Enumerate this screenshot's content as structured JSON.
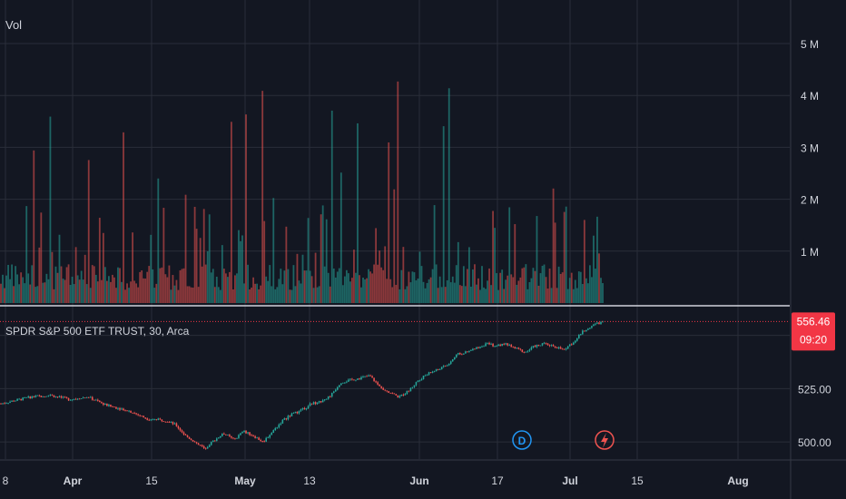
{
  "colors": {
    "background": "#131722",
    "grid": "#2a2e39",
    "up": "#26a69a",
    "down": "#ef5350",
    "text": "#d1d4dc",
    "badge": "#f23645"
  },
  "volume_pane": {
    "label": "Vol"
  },
  "price_pane": {
    "legend": "SPDR S&P 500 ETF TRUST, 30, Arca"
  },
  "price_badge": {
    "price": "556.46",
    "countdown": "09:20"
  },
  "markers": [
    {
      "name": "dividend-marker",
      "letter": "D"
    },
    {
      "name": "earnings-marker",
      "icon": "lightning-icon"
    }
  ],
  "chart_data": [
    {
      "type": "bar",
      "pane": "volume",
      "y_ticks": [
        "5 M",
        "4 M",
        "3 M",
        "2 M",
        "1 M"
      ],
      "y_values": [
        5000000,
        4000000,
        3000000,
        2000000,
        1000000
      ],
      "ylim": [
        0,
        5700000
      ]
    },
    {
      "type": "line",
      "pane": "price",
      "series_style": "candlestick",
      "x_ticks": [
        "8",
        "Apr",
        "15",
        "May",
        "13",
        "Jun",
        "17",
        "Jul",
        "15",
        "Aug"
      ],
      "y_ticks": [
        "525.00",
        "500.00"
      ],
      "y_values": [
        525,
        500
      ],
      "ylim": [
        492,
        563
      ],
      "current_price": 556.46,
      "close_path": [
        [
          0,
          518
        ],
        [
          3,
          521
        ],
        [
          5,
          522
        ],
        [
          7,
          520
        ],
        [
          9,
          521
        ],
        [
          11,
          517
        ],
        [
          13,
          515
        ],
        [
          15,
          511
        ],
        [
          17,
          510
        ],
        [
          18,
          508
        ],
        [
          19,
          503
        ],
        [
          20,
          500
        ],
        [
          21,
          497
        ],
        [
          22,
          501
        ],
        [
          23,
          504
        ],
        [
          24,
          501
        ],
        [
          25,
          505
        ],
        [
          26,
          503
        ],
        [
          27,
          500
        ],
        [
          28,
          505
        ],
        [
          29,
          510
        ],
        [
          30,
          513
        ],
        [
          31,
          515
        ],
        [
          32,
          518
        ],
        [
          33,
          519
        ],
        [
          34,
          522
        ],
        [
          35,
          528
        ],
        [
          37,
          530
        ],
        [
          38,
          531
        ],
        [
          39,
          526
        ],
        [
          41,
          521
        ],
        [
          42,
          524
        ],
        [
          43,
          529
        ],
        [
          44,
          532
        ],
        [
          45,
          534
        ],
        [
          46,
          536
        ],
        [
          47,
          541
        ],
        [
          48,
          542
        ],
        [
          49,
          544
        ],
        [
          50,
          546
        ],
        [
          51,
          545
        ],
        [
          52,
          546
        ],
        [
          53,
          544
        ],
        [
          54,
          542
        ],
        [
          55,
          545
        ],
        [
          56,
          546
        ],
        [
          57,
          545
        ],
        [
          58,
          543
        ],
        [
          59,
          547
        ],
        [
          60,
          552
        ],
        [
          61,
          555
        ],
        [
          62,
          556.46
        ]
      ]
    }
  ]
}
